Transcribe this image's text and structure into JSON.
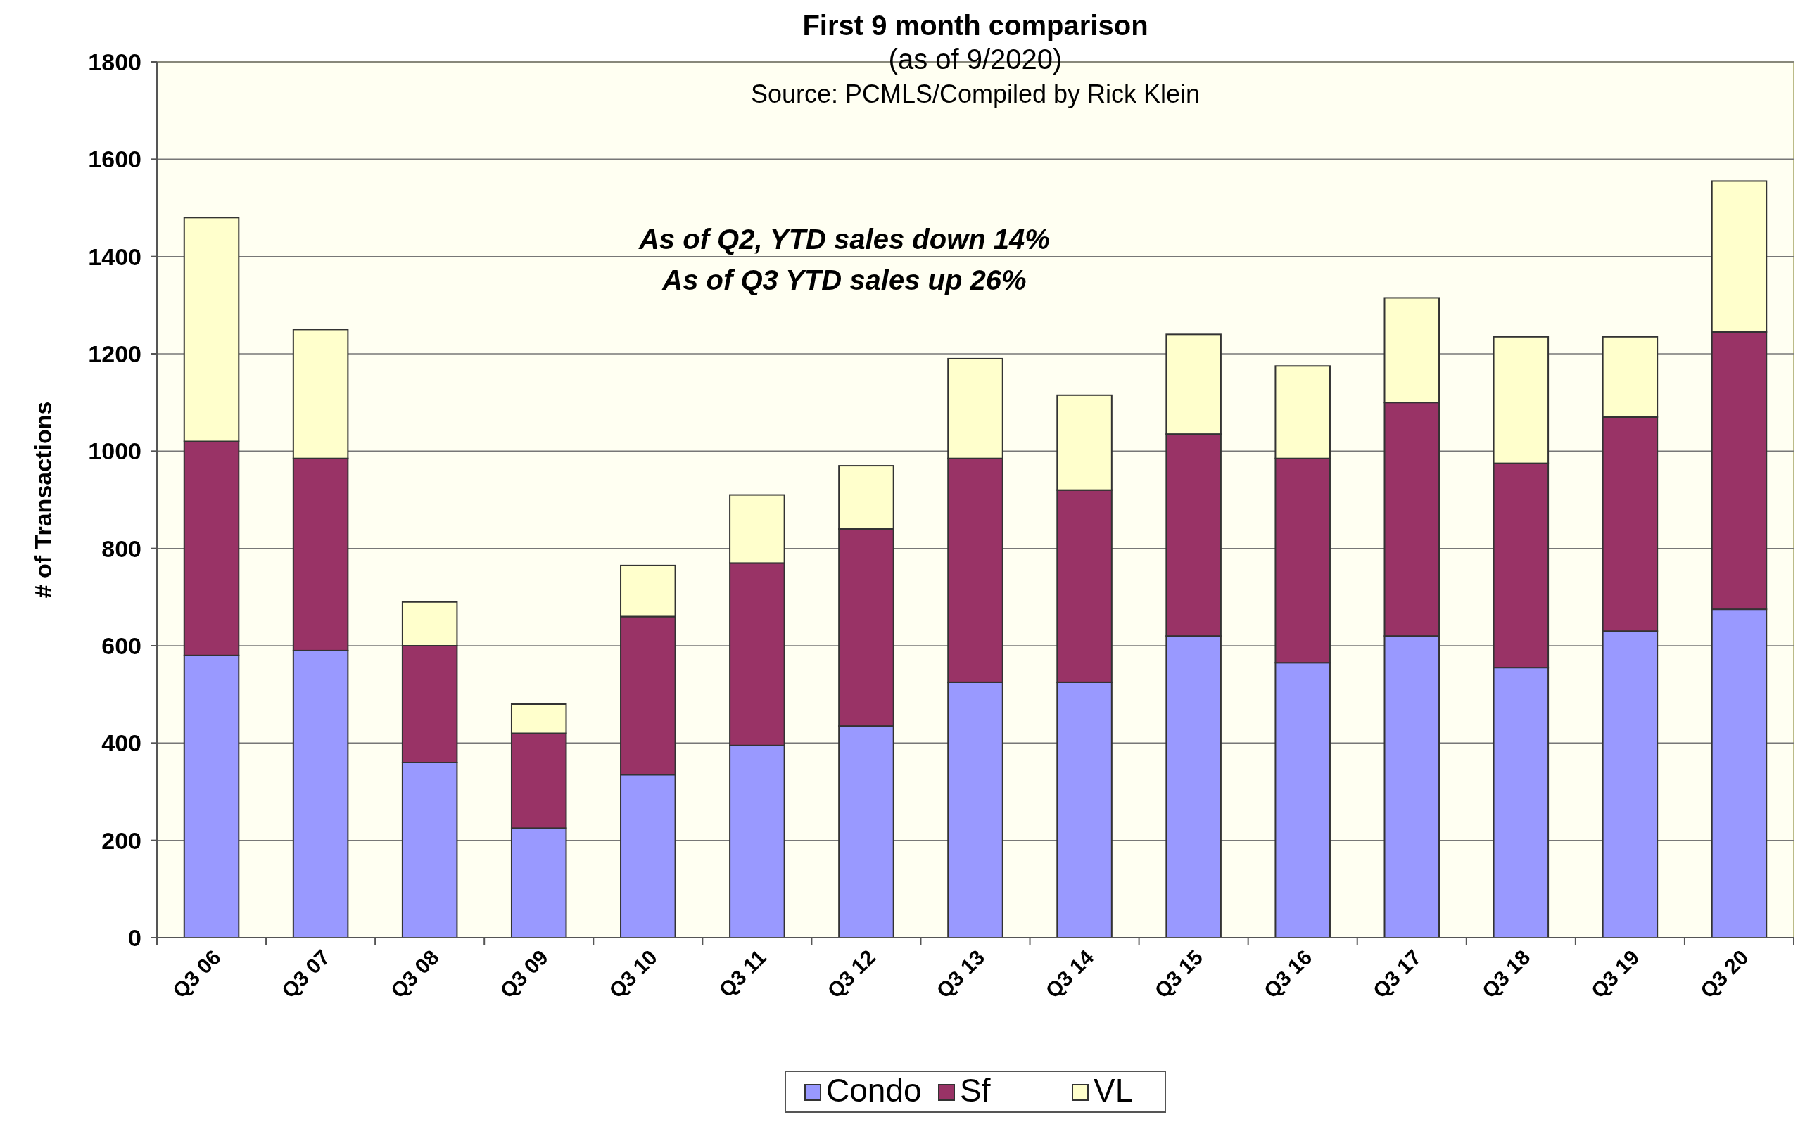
{
  "chart_data": {
    "type": "bar",
    "title": "First 9 month comparison",
    "subtitle": "(as of 9/2020)",
    "ylabel": "# of Transactions",
    "annotations": [
      "Source: PCMLS/Compiled by Rick Klein",
      "As of Q2, YTD sales down 14%",
      "As of Q3 YTD sales up 26%"
    ],
    "categories": [
      "Q3 06",
      "Q3 07",
      "Q3 08",
      "Q3 09",
      "Q3 10",
      "Q3 11",
      "Q3 12",
      "Q3 13",
      "Q3 14",
      "Q3 15",
      "Q3 16",
      "Q3 17",
      "Q3 18",
      "Q3 19",
      "Q3 20"
    ],
    "stacked": true,
    "series": [
      {
        "name": "Condo",
        "color": "#9999ff",
        "values": [
          580,
          590,
          360,
          225,
          335,
          395,
          435,
          525,
          525,
          620,
          565,
          620,
          555,
          630,
          675
        ]
      },
      {
        "name": "Sf",
        "color": "#993366",
        "values": [
          440,
          395,
          240,
          195,
          325,
          375,
          405,
          460,
          395,
          415,
          420,
          480,
          420,
          440,
          570
        ]
      },
      {
        "name": "VL",
        "color": "#ffffcc",
        "values": [
          460,
          265,
          90,
          60,
          105,
          140,
          130,
          205,
          195,
          205,
          190,
          215,
          260,
          165,
          310
        ]
      }
    ],
    "ylim": [
      0,
      1800
    ],
    "yticks": [
      0,
      200,
      400,
      600,
      800,
      1000,
      1200,
      1400,
      1600,
      1800
    ],
    "grid": "y",
    "legend": "bottom"
  }
}
